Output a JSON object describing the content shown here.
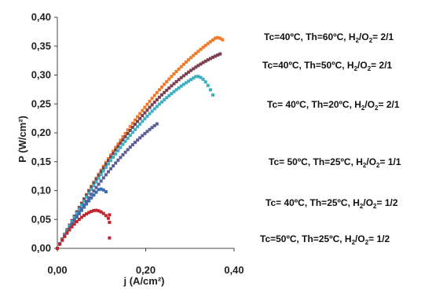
{
  "chart_data": {
    "type": "scatter",
    "title": "",
    "xlabel": "j (A/cm²)",
    "ylabel": "P (W/cm²)",
    "xlim": [
      0,
      0.4
    ],
    "ylim": [
      0,
      0.4
    ],
    "x_ticks": [
      "0,00",
      "0,20",
      "0,40"
    ],
    "y_ticks": [
      "0,00",
      "0,05",
      "0,10",
      "0,15",
      "0,20",
      "0,25",
      "0,30",
      "0,35",
      "0,40"
    ],
    "grid": false,
    "legend": "right",
    "series": [
      {
        "label_parts": [
          "Tc=40ºC, Th=60ºC, H",
          "2",
          "/O",
          "2",
          "= 2/1"
        ],
        "color": "#F07A28",
        "x_max": 0.375,
        "peak_x": 0.36,
        "peak_y": 0.365,
        "end_x": 0.38,
        "end_y": 0.357,
        "slope0": 1.5
      },
      {
        "label_parts": [
          "Tc=40ºC, Th=50ºC, H",
          "2",
          "/O",
          "2",
          "= 2/1"
        ],
        "color": "#7B3F4F",
        "x_max": 0.37,
        "peak_x": 0.37,
        "peak_y": 0.337,
        "slope0": 1.5
      },
      {
        "label_parts": [
          "Tc= 40ºC, Th=20ºC, H",
          "2",
          "/O",
          "2",
          "= 2/1"
        ],
        "color": "#3DAFC1",
        "x_max": 0.355,
        "peak_x": 0.315,
        "peak_y": 0.298,
        "end_x": 0.355,
        "end_y": 0.26,
        "slope0": 1.45
      },
      {
        "label_parts": [
          "Tc= 50ºC, Th=25ºC, H",
          "2",
          "/O",
          "2",
          "= 1/1"
        ],
        "color": "#5B5F95",
        "x_max": 0.23,
        "peak_x": 0.23,
        "peak_y": 0.218,
        "slope0": 1.35
      },
      {
        "label_parts": [
          "Tc= 40ºC, Th=25ºC, H",
          "2",
          "/O",
          "2",
          "= 1/2"
        ],
        "color": "#3E6AAE",
        "x_max": 0.11,
        "peak_x": 0.095,
        "peak_y": 0.103,
        "end_x": 0.11,
        "end_y": 0.098,
        "slope0": 1.35
      },
      {
        "label_parts": [
          "Tc=50ºC, Th=25ºC, H",
          "2",
          "/O",
          "2",
          "= 1/2"
        ],
        "color": "#C0282E",
        "x_max": 0.12,
        "peak_x": 0.085,
        "peak_y": 0.066,
        "end_x": 0.105,
        "end_y": 0.06,
        "tail_points": [
          [
            0.118,
            0.058
          ],
          [
            0.118,
            0.045
          ],
          [
            0.118,
            0.018
          ]
        ],
        "slope0": 1.35
      }
    ]
  }
}
